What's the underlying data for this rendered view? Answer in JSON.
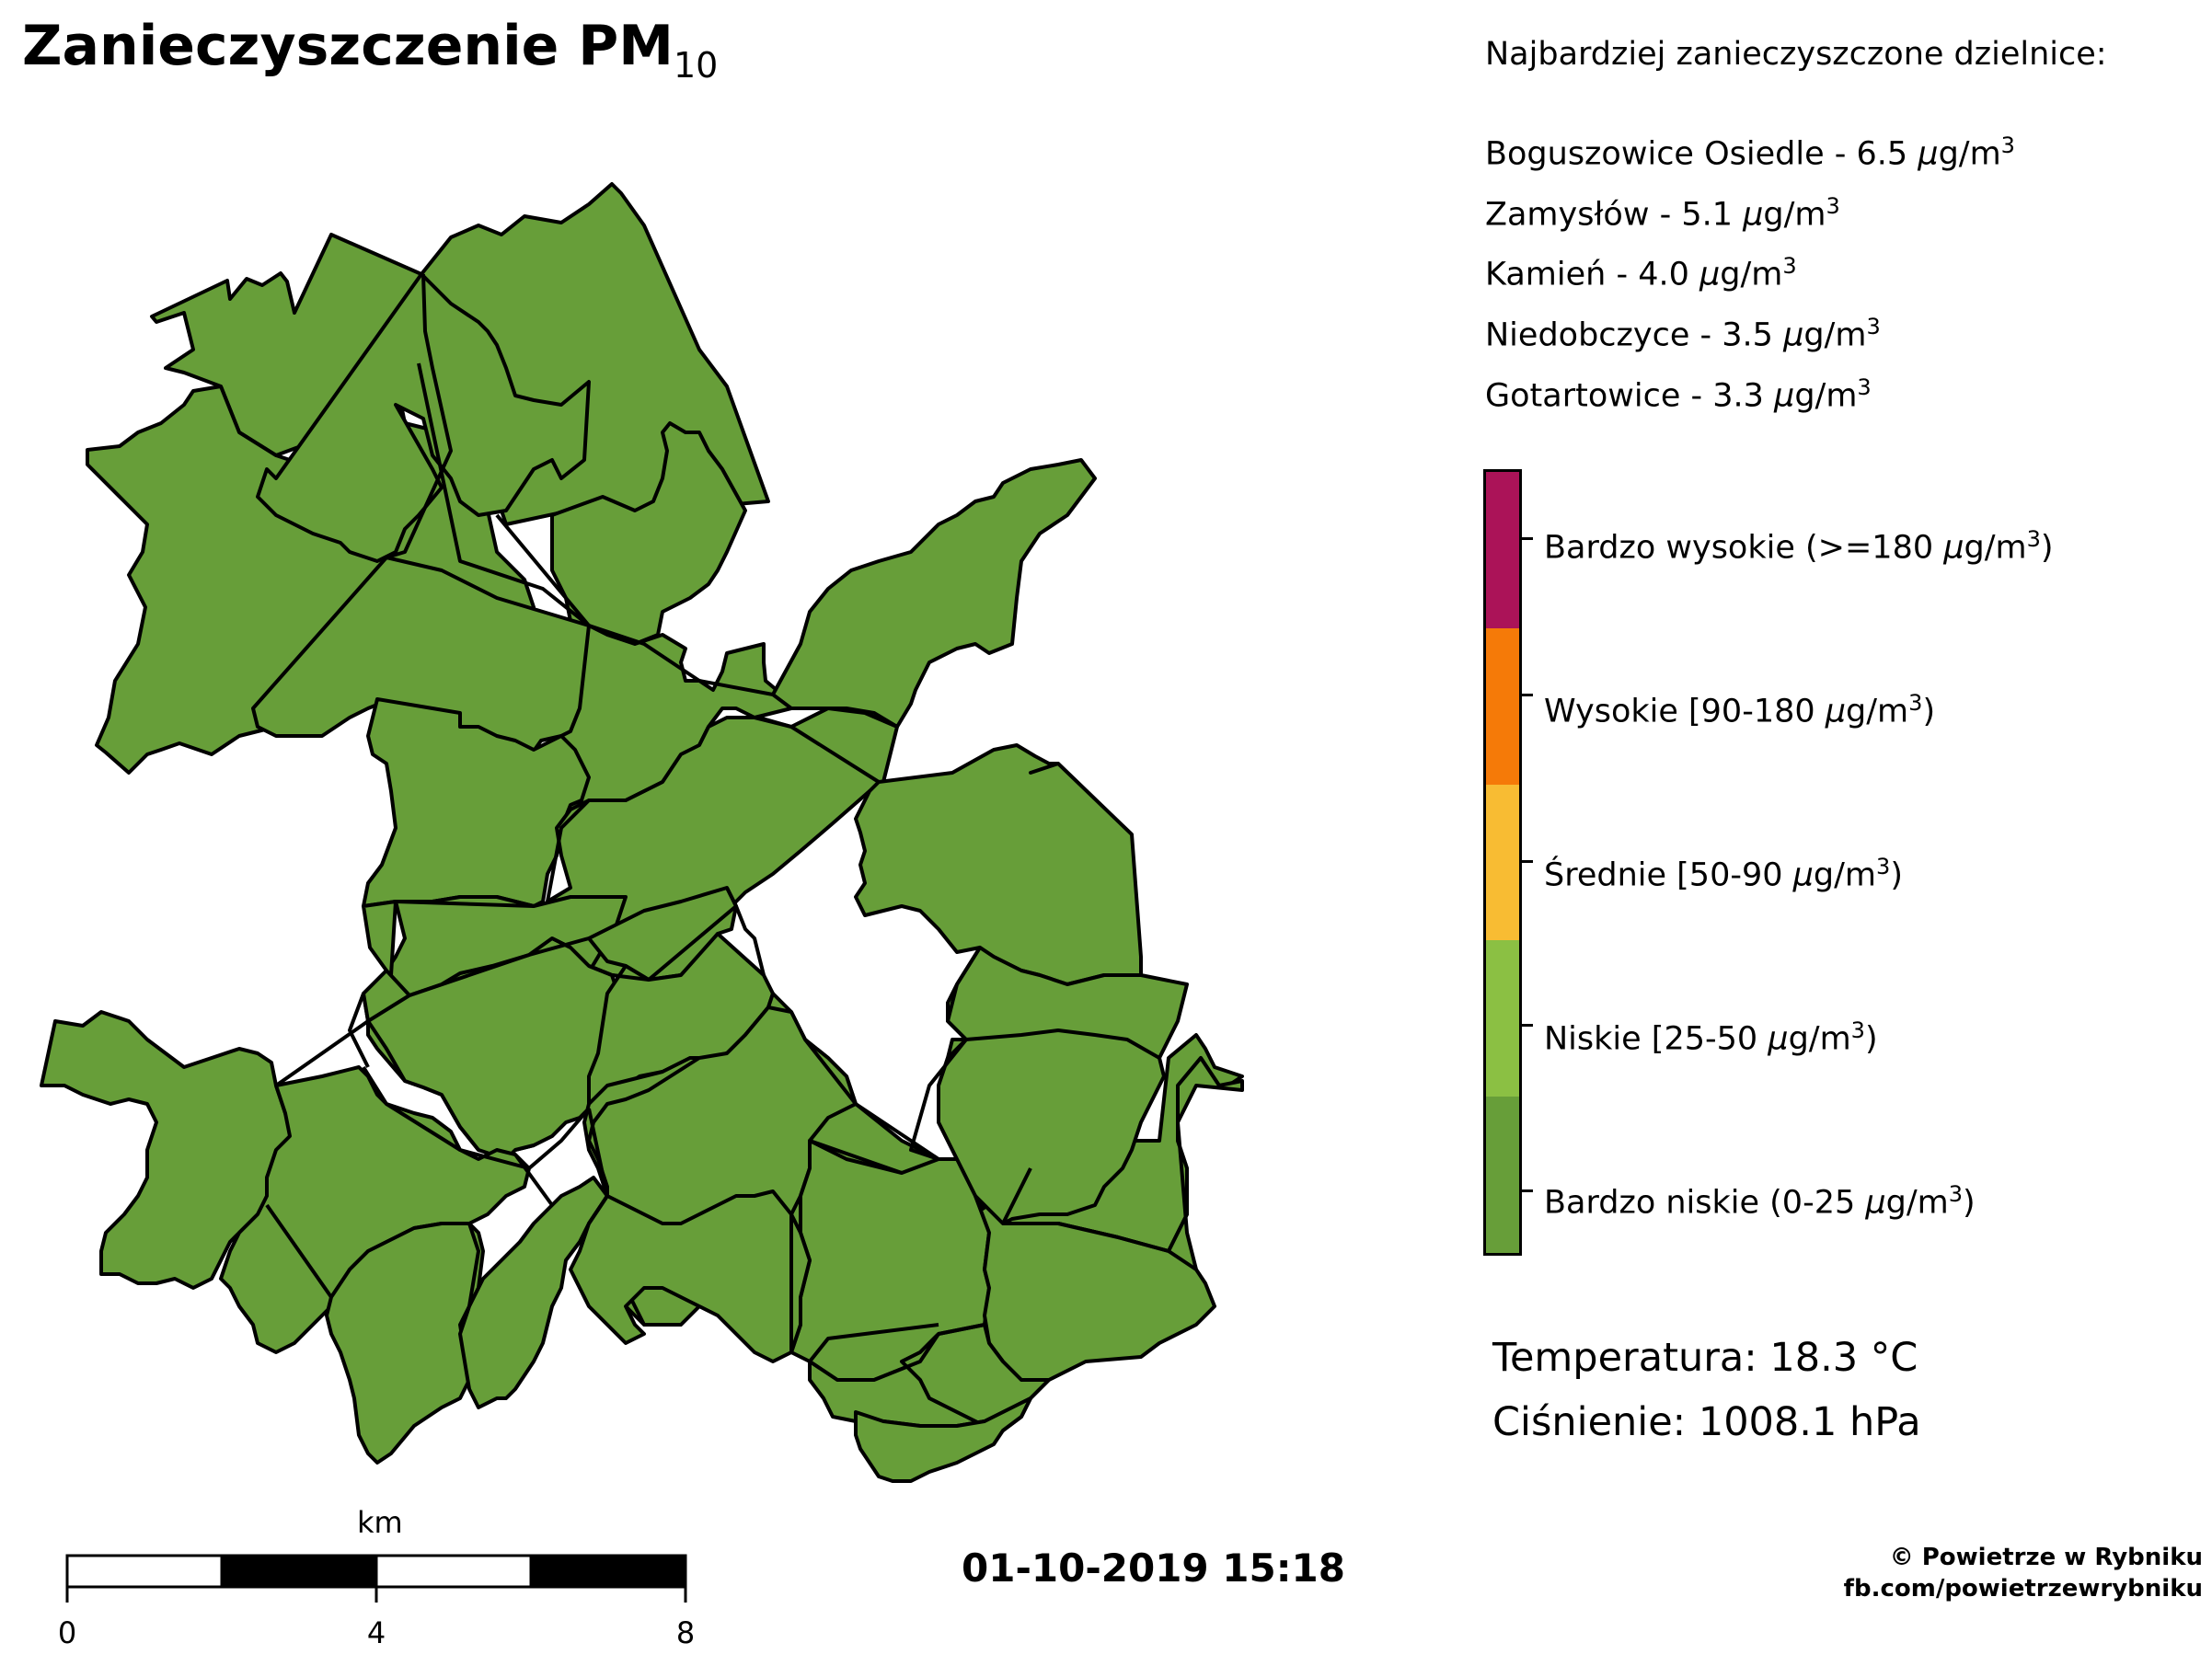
{
  "title": {
    "main": "Zanieczyszczenie PM",
    "sub": "10"
  },
  "top_list": {
    "header": "Najbardziej zanieczyszczone dzielnice:",
    "mu": "μ",
    "unit_prefix": "g/m",
    "unit_exp": "3",
    "items": [
      {
        "name": "Boguszowice Osiedle - 6.5 "
      },
      {
        "name": "Zamysłów - 5.1 "
      },
      {
        "name": "Kamień - 4.0 "
      },
      {
        "name": "Niedobczyce - 3.5 "
      },
      {
        "name": "Gotartowice - 3.3 "
      }
    ]
  },
  "legend": {
    "levels": [
      {
        "prefix": "Bardzo wysokie (>=180 ",
        "suffix": ")",
        "color": "#AB1358"
      },
      {
        "prefix": "Wysokie [90-180 ",
        "suffix": ")",
        "color": "#F57A08"
      },
      {
        "prefix": "Średnie [50-90 ",
        "suffix": ")",
        "color": "#F8BC33"
      },
      {
        "prefix": "Niskie [25-50 ",
        "suffix": ")",
        "color": "#8BC043"
      },
      {
        "prefix": "Bardzo niskie (0-25 ",
        "suffix": ")",
        "color": "#679E39"
      }
    ]
  },
  "map": {
    "district_fill": "#679E39",
    "border_color": "#000000"
  },
  "weather": {
    "temperature": "Temperatura: 18.3 °C",
    "pressure": "Ciśnienie: 1008.1 hPa"
  },
  "timestamp": "01-10-2019 15:18",
  "credit": {
    "line1": "© Powietrze w Rybniku",
    "line2": "fb.com/powietrzewrybniku"
  },
  "scalebar": {
    "unit": "km",
    "ticks": [
      "0",
      "4",
      "8"
    ]
  }
}
